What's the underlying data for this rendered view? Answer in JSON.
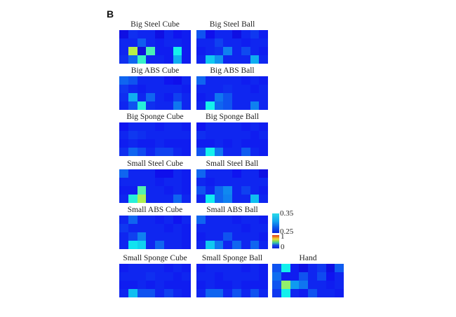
{
  "figure": {
    "panel_label": "B",
    "description": "Panel B: grid of tactile-response heatmaps for grasped objects and hand"
  },
  "colorbars": {
    "zoom": {
      "tick_top": "0.35",
      "tick_bottom": "0.25",
      "stops": [
        "#28dce8 0%",
        "#14a4ee 40%",
        "#0b58e8 72%",
        "#0a22dc 100%"
      ]
    },
    "main": {
      "tick_top": "1",
      "tick_bottom": "0",
      "stops": [
        "#d8341c 0%",
        "#f08a24 14%",
        "#e8dc3c 30%",
        "#88d855 45%",
        "#38c4a8 58%",
        "#1a48e6 76%",
        "#0a20d8 100%"
      ]
    }
  },
  "chart_data": {
    "type": "heatmap",
    "grid": {
      "rows": 4,
      "cols": 8
    },
    "colormap": "jet",
    "value_scale_note": "cell values estimated from pixel colors on a 0-1 jet scale; colorbar ticks shown: 0.35/0.25 (zoomed bar) and 1/0 (full bar)",
    "legend_position": "right of Small ABS Ball panel",
    "heatmaps": [
      {
        "title": "Big Steel Cube",
        "values": [
          [
            0.11,
            0.16,
            0.15,
            0.15,
            0.11,
            0.15,
            0.13,
            0.14
          ],
          [
            0.15,
            0.15,
            0.21,
            0.15,
            0.14,
            0.15,
            0.15,
            0.14
          ],
          [
            0.15,
            0.56,
            0.1,
            0.44,
            0.14,
            0.14,
            0.38,
            0.14
          ],
          [
            0.16,
            0.22,
            0.42,
            0.15,
            0.15,
            0.14,
            0.3,
            0.14
          ]
        ]
      },
      {
        "title": "Big Steel Ball",
        "values": [
          [
            0.2,
            0.12,
            0.15,
            0.15,
            0.11,
            0.15,
            0.17,
            0.14
          ],
          [
            0.15,
            0.15,
            0.18,
            0.15,
            0.15,
            0.14,
            0.15,
            0.15
          ],
          [
            0.14,
            0.15,
            0.16,
            0.25,
            0.15,
            0.19,
            0.15,
            0.14
          ],
          [
            0.15,
            0.33,
            0.27,
            0.15,
            0.15,
            0.15,
            0.3,
            0.15
          ]
        ]
      },
      {
        "title": "Big ABS Cube",
        "values": [
          [
            0.22,
            0.2,
            0.15,
            0.15,
            0.15,
            0.13,
            0.12,
            0.15
          ],
          [
            0.17,
            0.15,
            0.14,
            0.15,
            0.15,
            0.15,
            0.15,
            0.14
          ],
          [
            0.16,
            0.3,
            0.15,
            0.22,
            0.15,
            0.14,
            0.18,
            0.15
          ],
          [
            0.15,
            0.2,
            0.4,
            0.16,
            0.15,
            0.15,
            0.24,
            0.15
          ]
        ]
      },
      {
        "title": "Big ABS Ball",
        "values": [
          [
            0.22,
            0.15,
            0.15,
            0.15,
            0.15,
            0.14,
            0.15,
            0.14
          ],
          [
            0.15,
            0.15,
            0.15,
            0.16,
            0.15,
            0.15,
            0.14,
            0.15
          ],
          [
            0.14,
            0.15,
            0.24,
            0.2,
            0.15,
            0.15,
            0.15,
            0.15
          ],
          [
            0.15,
            0.38,
            0.22,
            0.2,
            0.15,
            0.15,
            0.25,
            0.15
          ]
        ]
      },
      {
        "title": "Big Sponge Cube",
        "values": [
          [
            0.13,
            0.15,
            0.15,
            0.15,
            0.14,
            0.15,
            0.15,
            0.14
          ],
          [
            0.15,
            0.17,
            0.16,
            0.15,
            0.15,
            0.15,
            0.15,
            0.15
          ],
          [
            0.14,
            0.15,
            0.14,
            0.14,
            0.15,
            0.14,
            0.14,
            0.14
          ],
          [
            0.16,
            0.22,
            0.19,
            0.15,
            0.18,
            0.18,
            0.15,
            0.14
          ]
        ]
      },
      {
        "title": "Big Sponge Ball",
        "values": [
          [
            0.13,
            0.15,
            0.15,
            0.15,
            0.15,
            0.14,
            0.15,
            0.14
          ],
          [
            0.16,
            0.15,
            0.15,
            0.15,
            0.15,
            0.15,
            0.14,
            0.15
          ],
          [
            0.14,
            0.14,
            0.15,
            0.14,
            0.15,
            0.14,
            0.14,
            0.14
          ],
          [
            0.2,
            0.38,
            0.24,
            0.15,
            0.15,
            0.21,
            0.15,
            0.14
          ]
        ]
      },
      {
        "title": "Small Steel Cube",
        "values": [
          [
            0.22,
            0.15,
            0.15,
            0.15,
            0.12,
            0.12,
            0.15,
            0.14
          ],
          [
            0.15,
            0.15,
            0.15,
            0.15,
            0.14,
            0.15,
            0.15,
            0.14
          ],
          [
            0.14,
            0.14,
            0.45,
            0.15,
            0.15,
            0.14,
            0.15,
            0.14
          ],
          [
            0.15,
            0.4,
            0.55,
            0.15,
            0.15,
            0.15,
            0.22,
            0.15
          ]
        ]
      },
      {
        "title": "Small Steel Ball",
        "values": [
          [
            0.22,
            0.15,
            0.15,
            0.15,
            0.13,
            0.15,
            0.15,
            0.11
          ],
          [
            0.15,
            0.14,
            0.15,
            0.15,
            0.15,
            0.15,
            0.15,
            0.15
          ],
          [
            0.2,
            0.15,
            0.22,
            0.26,
            0.15,
            0.18,
            0.15,
            0.14
          ],
          [
            0.15,
            0.37,
            0.22,
            0.25,
            0.15,
            0.15,
            0.32,
            0.15
          ]
        ]
      },
      {
        "title": "Small ABS Cube",
        "values": [
          [
            0.15,
            0.22,
            0.15,
            0.15,
            0.14,
            0.15,
            0.13,
            0.15
          ],
          [
            0.17,
            0.15,
            0.15,
            0.15,
            0.15,
            0.14,
            0.15,
            0.14
          ],
          [
            0.15,
            0.18,
            0.25,
            0.15,
            0.15,
            0.15,
            0.15,
            0.14
          ],
          [
            0.15,
            0.36,
            0.34,
            0.15,
            0.22,
            0.15,
            0.15,
            0.14
          ]
        ]
      },
      {
        "title": "Small ABS Ball",
        "values": [
          [
            0.22,
            0.15,
            0.15,
            0.15,
            0.14,
            0.15,
            0.15,
            0.14
          ],
          [
            0.15,
            0.15,
            0.15,
            0.15,
            0.15,
            0.14,
            0.15,
            0.15
          ],
          [
            0.14,
            0.15,
            0.15,
            0.2,
            0.15,
            0.15,
            0.15,
            0.14
          ],
          [
            0.15,
            0.33,
            0.24,
            0.15,
            0.22,
            0.15,
            0.22,
            0.15
          ]
        ]
      },
      {
        "title": "Small Sponge Cube",
        "values": [
          [
            0.14,
            0.15,
            0.15,
            0.15,
            0.15,
            0.14,
            0.15,
            0.14
          ],
          [
            0.15,
            0.15,
            0.15,
            0.16,
            0.15,
            0.15,
            0.14,
            0.15
          ],
          [
            0.14,
            0.14,
            0.15,
            0.14,
            0.15,
            0.14,
            0.14,
            0.14
          ],
          [
            0.15,
            0.32,
            0.2,
            0.2,
            0.15,
            0.18,
            0.15,
            0.14
          ]
        ]
      },
      {
        "title": "Small Sponge Ball",
        "values": [
          [
            0.14,
            0.15,
            0.15,
            0.15,
            0.15,
            0.14,
            0.15,
            0.14
          ],
          [
            0.15,
            0.15,
            0.14,
            0.15,
            0.15,
            0.15,
            0.15,
            0.14
          ],
          [
            0.14,
            0.15,
            0.14,
            0.14,
            0.15,
            0.14,
            0.14,
            0.14
          ],
          [
            0.15,
            0.22,
            0.22,
            0.15,
            0.2,
            0.15,
            0.2,
            0.15
          ]
        ]
      },
      {
        "title": "Hand",
        "values": [
          [
            0.2,
            0.38,
            0.14,
            0.11,
            0.15,
            0.17,
            0.11,
            0.21
          ],
          [
            0.23,
            0.14,
            0.14,
            0.2,
            0.15,
            0.19,
            0.13,
            0.15
          ],
          [
            0.2,
            0.52,
            0.28,
            0.24,
            0.15,
            0.15,
            0.14,
            0.15
          ],
          [
            0.17,
            0.38,
            0.15,
            0.14,
            0.2,
            0.15,
            0.15,
            0.14
          ]
        ]
      }
    ]
  }
}
